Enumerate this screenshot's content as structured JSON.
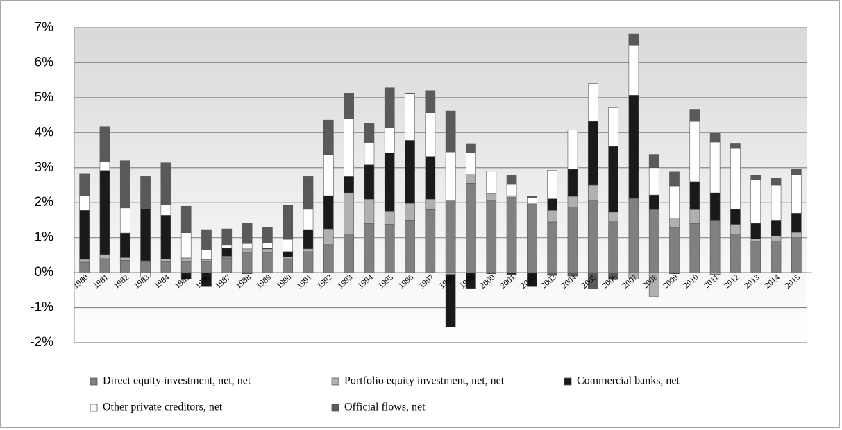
{
  "chart_data": {
    "type": "stacked-bar",
    "categories": [
      "1980",
      "1981",
      "1982",
      "1983",
      "1984",
      "1985",
      "1986",
      "1987",
      "1988",
      "1989",
      "1990",
      "1991",
      "1992",
      "1993",
      "1994",
      "1995",
      "1996",
      "1997",
      "1998",
      "1999",
      "2000",
      "2001",
      "2002",
      "2003",
      "2004",
      "2005",
      "2006",
      "2007",
      "2008",
      "2009",
      "2010",
      "2011",
      "2012",
      "2013",
      "2014",
      "2015"
    ],
    "series": [
      {
        "name": "Direct equity investment, net, net",
        "color": "#808080",
        "values": [
          0.3,
          0.4,
          0.35,
          0.32,
          0.32,
          0.32,
          0.32,
          0.42,
          0.58,
          0.58,
          0.4,
          0.6,
          0.8,
          1.1,
          1.4,
          1.38,
          1.5,
          1.8,
          2.05,
          2.55,
          2.05,
          2.15,
          1.95,
          1.45,
          1.88,
          2.05,
          1.48,
          2.12,
          1.8,
          1.28,
          1.4,
          1.5,
          1.1,
          0.88,
          0.9,
          1.0
        ]
      },
      {
        "name": "Portfolio equity investment, net, net",
        "color": "#b0b0b0",
        "values": [
          0.08,
          0.12,
          0.08,
          0.02,
          0.07,
          0.1,
          0.05,
          0.05,
          0.1,
          0.1,
          0.05,
          0.08,
          0.45,
          1.18,
          0.7,
          0.38,
          0.48,
          0.3,
          -0.05,
          0.25,
          0.2,
          0.05,
          0.05,
          0.33,
          0.3,
          0.45,
          0.25,
          -0.18,
          -0.68,
          0.28,
          0.4,
          -0.05,
          0.28,
          0.08,
          0.15,
          0.15
        ]
      },
      {
        "name": "Commercial banks, net",
        "color": "#1a1a1a",
        "values": [
          1.4,
          2.4,
          0.7,
          1.48,
          1.25,
          -0.18,
          -0.4,
          0.23,
          -0.03,
          0.02,
          0.15,
          0.55,
          0.95,
          0.47,
          0.98,
          1.66,
          1.8,
          1.22,
          -1.5,
          -0.45,
          -0.03,
          -0.05,
          -0.4,
          0.33,
          0.78,
          1.82,
          1.88,
          2.95,
          0.42,
          -0.03,
          0.8,
          0.78,
          0.43,
          0.45,
          0.45,
          0.55
        ]
      },
      {
        "name": "Other private creditors, net",
        "color": "#ffffff",
        "values": [
          0.42,
          0.25,
          0.72,
          -0.12,
          0.3,
          0.72,
          0.28,
          0.1,
          0.15,
          0.15,
          0.35,
          0.58,
          1.18,
          1.65,
          0.64,
          0.73,
          1.33,
          1.25,
          1.4,
          0.62,
          0.65,
          0.32,
          0.15,
          0.82,
          1.12,
          1.08,
          1.1,
          1.43,
          0.78,
          0.92,
          1.72,
          1.45,
          1.74,
          1.25,
          1.0,
          1.1
        ]
      },
      {
        "name": "Official flows, net",
        "color": "#5a5a5a",
        "values": [
          0.62,
          1.0,
          1.35,
          0.93,
          1.2,
          0.76,
          0.58,
          0.45,
          0.58,
          0.44,
          0.97,
          0.94,
          0.98,
          0.73,
          0.55,
          1.13,
          0.02,
          0.63,
          1.17,
          0.27,
          0,
          0.25,
          0.03,
          -0.08,
          -0.1,
          -0.45,
          -0.2,
          0.32,
          0.38,
          0.4,
          0.35,
          0.25,
          0.15,
          0.12,
          0.2,
          0.15
        ]
      }
    ],
    "ylim": [
      -2,
      7
    ],
    "yticks": [
      {
        "value": -2,
        "label": "-2%"
      },
      {
        "value": -1,
        "label": "-1%"
      },
      {
        "value": 0,
        "label": "0%"
      },
      {
        "value": 1,
        "label": "1%"
      },
      {
        "value": 2,
        "label": "2%"
      },
      {
        "value": 3,
        "label": "3%"
      },
      {
        "value": 4,
        "label": "4%"
      },
      {
        "value": 5,
        "label": "5%"
      },
      {
        "value": 6,
        "label": "6%"
      },
      {
        "value": 7,
        "label": "7%"
      }
    ],
    "grid": true,
    "legend": "bottom"
  }
}
